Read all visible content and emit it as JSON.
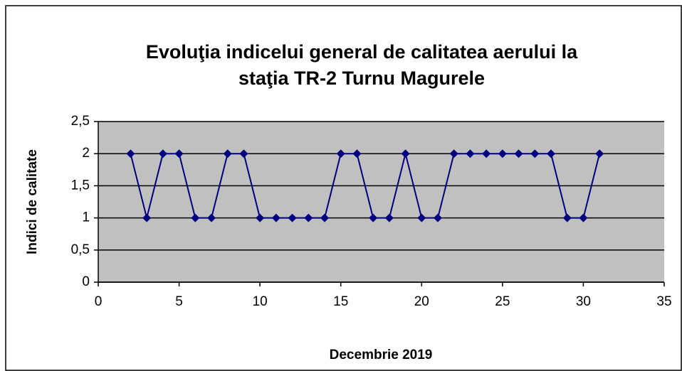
{
  "chart_data": {
    "type": "line",
    "title": [
      "Evoluţia indicelui general de calitatea aerului la",
      "staţia TR-2 Turnu Magurele"
    ],
    "x_label": "Decembrie 2019",
    "y_label": "Indici de calitate",
    "x": [
      2,
      3,
      4,
      5,
      6,
      7,
      8,
      9,
      10,
      11,
      12,
      13,
      14,
      15,
      16,
      17,
      18,
      19,
      20,
      21,
      22,
      23,
      24,
      25,
      26,
      27,
      28,
      29,
      30,
      31
    ],
    "series": [
      {
        "color": "#000080",
        "values": [
          2,
          1,
          2,
          2,
          1,
          1,
          2,
          2,
          1,
          1,
          1,
          1,
          1,
          2,
          2,
          1,
          1,
          2,
          1,
          1,
          2,
          2,
          2,
          2,
          2,
          2,
          2,
          1,
          1,
          2
        ]
      }
    ],
    "xlim": [
      0,
      35
    ],
    "xticks": [
      0,
      5,
      10,
      15,
      20,
      25,
      30,
      35
    ],
    "ylim": [
      0,
      2.5
    ],
    "yticks": [
      0,
      {
        "value": 0.5,
        "label": "0,5"
      },
      1,
      {
        "value": 1.5,
        "label": "1,5"
      },
      2,
      {
        "value": 2.5,
        "label": "2,5"
      }
    ],
    "grid": true,
    "plot_background": "#c0c0c0"
  }
}
